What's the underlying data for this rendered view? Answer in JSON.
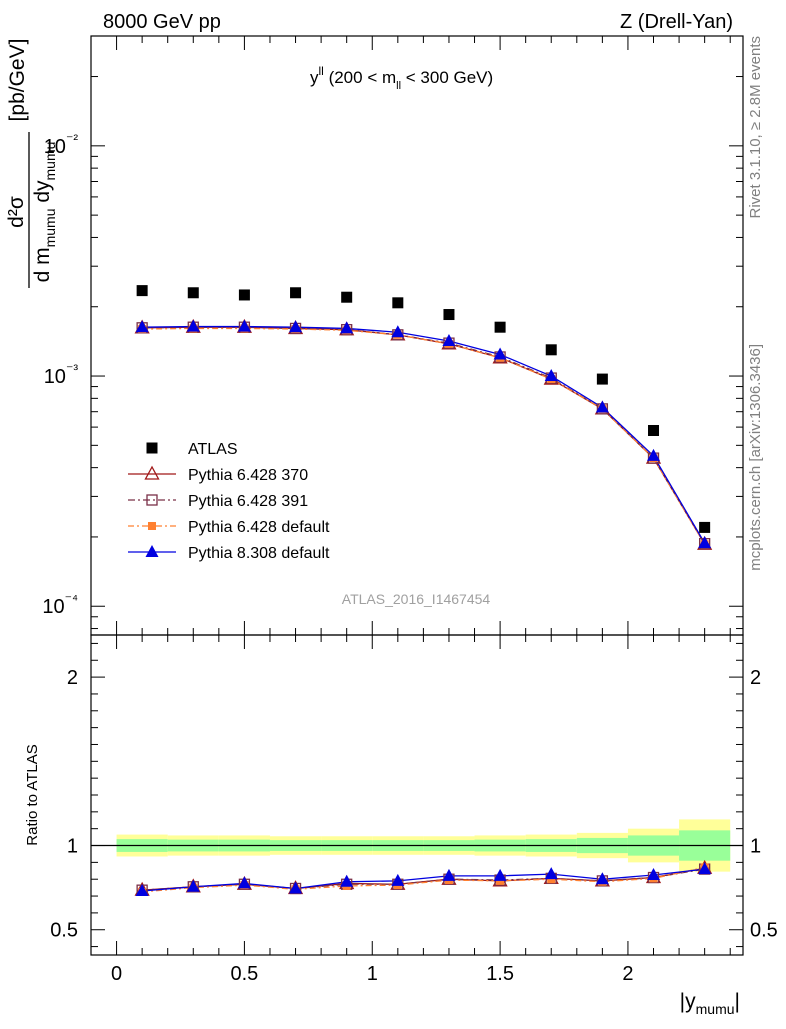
{
  "header": {
    "left": "8000 GeV pp",
    "right": "Z (Drell-Yan)"
  },
  "side_labels": {
    "rivet": "Rivet 3.1.10, ≥ 2.8M events",
    "mcplots": "mcplots.cern.ch [arXiv:1306.3436]"
  },
  "plot_title": {
    "main": "y",
    "sup": "ll",
    "rest_a": " (200 < m",
    "sub": "ll",
    "rest_b": " < 300 GeV)"
  },
  "watermark": "ATLAS_2016_I1467454",
  "ylabel_top": {
    "num": "d²σ",
    "den_a": "d m",
    "den_sub_a": "mumu",
    "den_b": " dy",
    "den_sub_b": "mumu",
    "unit": "[pb/GeV]"
  },
  "ylabel_bottom": "Ratio to ATLAS",
  "xlabel": {
    "pre": "|y",
    "sub": "mumu",
    "post": "|"
  },
  "colors": {
    "atlas": "#000000",
    "p370": "#a01818",
    "p391": "#7a3048",
    "pdef": "#ff8030",
    "p8": "#0000e0",
    "band_yellow": "#ffff99",
    "band_green": "#99ff99"
  },
  "chart_data": [
    {
      "type": "scatter",
      "panel": "main",
      "x": [
        0.1,
        0.3,
        0.5,
        0.7,
        0.9,
        1.1,
        1.3,
        1.5,
        1.7,
        1.9,
        2.1,
        2.3
      ],
      "xlim": [
        -0.1,
        2.45
      ],
      "ylim": [
        7.5e-05,
        0.03
      ],
      "yscale": "log",
      "x_ticks": [
        "0",
        "0.5",
        "1",
        "1.5",
        "2"
      ],
      "y_ticks": [
        "10⁻⁴",
        "10⁻³",
        "10⁻²"
      ],
      "legend_position": "middle-left",
      "series": [
        {
          "name": "ATLAS",
          "marker": "square",
          "values": [
            0.00235,
            0.0023,
            0.00225,
            0.0023,
            0.0022,
            0.00208,
            0.00185,
            0.00163,
            0.0013,
            0.00097,
            0.00058,
            0.00022
          ]
        },
        {
          "name": "Pythia 6.428 370",
          "marker": "triangle-open",
          "values": [
            0.00162,
            0.00163,
            0.00163,
            0.00161,
            0.00159,
            0.00151,
            0.00138,
            0.0012,
            0.00097,
            0.00072,
            0.00044,
            0.000186
          ]
        },
        {
          "name": "Pythia 6.428 391",
          "marker": "square-open",
          "values": [
            0.00162,
            0.00163,
            0.00163,
            0.00161,
            0.00159,
            0.00151,
            0.00139,
            0.00121,
            0.00098,
            0.00072,
            0.00044,
            0.000187
          ]
        },
        {
          "name": "Pythia 6.428 default",
          "marker": "square-filled-small",
          "values": [
            0.0016,
            0.00161,
            0.00161,
            0.0016,
            0.00158,
            0.00151,
            0.00138,
            0.0012,
            0.00097,
            0.00072,
            0.00044,
            0.000186
          ]
        },
        {
          "name": "Pythia 8.308 default",
          "marker": "triangle",
          "values": [
            0.00163,
            0.00164,
            0.00164,
            0.00163,
            0.00161,
            0.00155,
            0.00142,
            0.00124,
            0.001,
            0.00073,
            0.00045,
            0.000188
          ]
        }
      ]
    },
    {
      "type": "line",
      "panel": "ratio",
      "ylabel": "Ratio to ATLAS",
      "x": [
        0.1,
        0.3,
        0.5,
        0.7,
        0.9,
        1.1,
        1.3,
        1.5,
        1.7,
        1.9,
        2.1,
        2.3
      ],
      "xlim": [
        -0.1,
        2.45
      ],
      "ylim": [
        0.35,
        2.25
      ],
      "y_ticks": [
        "0.5",
        "1",
        "2"
      ],
      "bands": {
        "edges": [
          0.0,
          0.2,
          0.4,
          0.6,
          0.8,
          1.0,
          1.2,
          1.4,
          1.6,
          1.8,
          2.0,
          2.2,
          2.4
        ],
        "yellow_half_width": [
          0.065,
          0.06,
          0.06,
          0.055,
          0.055,
          0.055,
          0.055,
          0.06,
          0.065,
          0.075,
          0.1,
          0.155
        ],
        "green_half_width": [
          0.038,
          0.035,
          0.035,
          0.032,
          0.032,
          0.032,
          0.032,
          0.035,
          0.038,
          0.045,
          0.06,
          0.09
        ]
      },
      "series": [
        {
          "name": "Pythia 6.428 370",
          "values": [
            0.735,
            0.755,
            0.77,
            0.745,
            0.775,
            0.77,
            0.8,
            0.79,
            0.805,
            0.79,
            0.81,
            0.865
          ]
        },
        {
          "name": "Pythia 6.428 391",
          "values": [
            0.735,
            0.755,
            0.77,
            0.745,
            0.77,
            0.77,
            0.8,
            0.795,
            0.805,
            0.79,
            0.81,
            0.86
          ]
        },
        {
          "name": "Pythia 6.428 default",
          "values": [
            0.725,
            0.75,
            0.765,
            0.74,
            0.76,
            0.765,
            0.795,
            0.79,
            0.8,
            0.785,
            0.805,
            0.87
          ]
        },
        {
          "name": "Pythia 8.308 default",
          "values": [
            0.73,
            0.755,
            0.775,
            0.745,
            0.785,
            0.79,
            0.82,
            0.82,
            0.83,
            0.8,
            0.825,
            0.86
          ]
        }
      ]
    }
  ]
}
